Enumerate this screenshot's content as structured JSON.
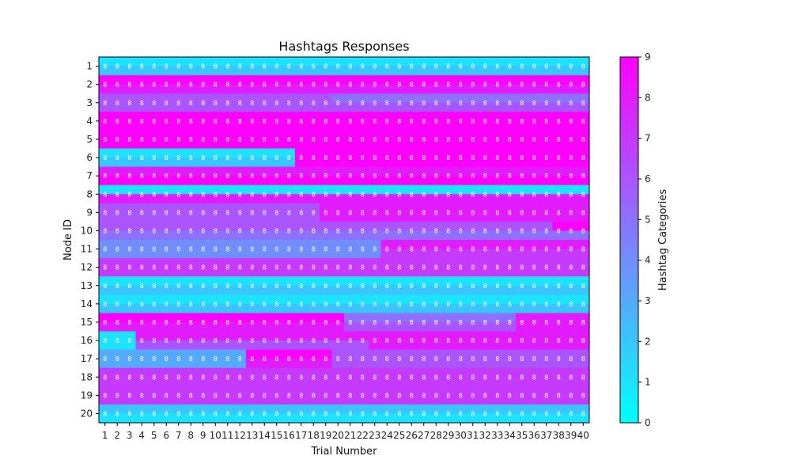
{
  "chart_data": {
    "type": "heatmap",
    "title": "Hashtags Responses",
    "xlabel": "Trial Number",
    "ylabel": "Node ID",
    "colorbar_label": "Hashtag Categories",
    "color_range": [
      0,
      9
    ],
    "colorbar_ticks": [
      "0",
      "1",
      "2",
      "3",
      "4",
      "5",
      "6",
      "7",
      "8",
      "9"
    ],
    "x_categories": [
      "1",
      "2",
      "3",
      "4",
      "5",
      "6",
      "7",
      "8",
      "9",
      "10",
      "11",
      "12",
      "13",
      "14",
      "15",
      "16",
      "17",
      "18",
      "19",
      "20",
      "21",
      "22",
      "23",
      "24",
      "25",
      "26",
      "27",
      "28",
      "29",
      "30",
      "31",
      "32",
      "33",
      "34",
      "35",
      "36",
      "37",
      "38",
      "39",
      "40"
    ],
    "y_categories": [
      "1",
      "2",
      "3",
      "4",
      "5",
      "6",
      "7",
      "8",
      "9",
      "10",
      "11",
      "12",
      "13",
      "14",
      "15",
      "16",
      "17",
      "18",
      "19",
      "20"
    ],
    "rows": [
      {
        "node": "1",
        "segments": [
          {
            "from": 1,
            "to": 40,
            "top": 1,
            "bottom": 2
          }
        ]
      },
      {
        "node": "2",
        "segments": [
          {
            "from": 1,
            "to": 40,
            "top": 9,
            "bottom": 8
          }
        ]
      },
      {
        "node": "3",
        "segments": [
          {
            "from": 1,
            "to": 19,
            "top": 6,
            "bottom": 6
          },
          {
            "from": 20,
            "to": 40,
            "top": 5,
            "bottom": 6
          }
        ]
      },
      {
        "node": "4",
        "segments": [
          {
            "from": 1,
            "to": 40,
            "top": 9,
            "bottom": 9
          }
        ]
      },
      {
        "node": "5",
        "segments": [
          {
            "from": 1,
            "to": 40,
            "top": 9,
            "bottom": 9
          }
        ]
      },
      {
        "node": "6",
        "segments": [
          {
            "from": 1,
            "to": 16,
            "top": 1,
            "bottom": 2
          },
          {
            "from": 17,
            "to": 40,
            "top": 9,
            "bottom": 9
          }
        ]
      },
      {
        "node": "7",
        "segments": [
          {
            "from": 1,
            "to": 40,
            "top": 8,
            "bottom": 9
          }
        ]
      },
      {
        "node": "8",
        "segments": [
          {
            "from": 1,
            "to": 40,
            "top": 1,
            "bottom": 8
          }
        ]
      },
      {
        "node": "9",
        "segments": [
          {
            "from": 1,
            "to": 18,
            "top": 6,
            "bottom": 6
          },
          {
            "from": 19,
            "to": 40,
            "top": 8,
            "bottom": 8
          }
        ]
      },
      {
        "node": "10",
        "segments": [
          {
            "from": 1,
            "to": 37,
            "top": 6,
            "bottom": 5
          },
          {
            "from": 38,
            "to": 40,
            "top": 9,
            "bottom": 5
          }
        ]
      },
      {
        "node": "11",
        "segments": [
          {
            "from": 1,
            "to": 23,
            "top": 4,
            "bottom": 4
          },
          {
            "from": 24,
            "to": 40,
            "top": 8,
            "bottom": 7
          }
        ]
      },
      {
        "node": "12",
        "segments": [
          {
            "from": 1,
            "to": 40,
            "top": 7,
            "bottom": 7
          }
        ]
      },
      {
        "node": "13",
        "segments": [
          {
            "from": 1,
            "to": 40,
            "top": 1,
            "bottom": 2
          }
        ]
      },
      {
        "node": "14",
        "segments": [
          {
            "from": 1,
            "to": 40,
            "top": 1,
            "bottom": 2
          }
        ]
      },
      {
        "node": "15",
        "segments": [
          {
            "from": 1,
            "to": 20,
            "top": 9,
            "bottom": 8
          },
          {
            "from": 21,
            "to": 34,
            "top": 5,
            "bottom": 6
          },
          {
            "from": 35,
            "to": 40,
            "top": 8,
            "bottom": 8
          }
        ]
      },
      {
        "node": "16",
        "segments": [
          {
            "from": 1,
            "to": 3,
            "top": 1,
            "bottom": 1
          },
          {
            "from": 4,
            "to": 22,
            "top": 8,
            "bottom": 6
          },
          {
            "from": 23,
            "to": 40,
            "top": 8,
            "bottom": 8
          }
        ]
      },
      {
        "node": "17",
        "segments": [
          {
            "from": 1,
            "to": 12,
            "top": 3,
            "bottom": 3
          },
          {
            "from": 13,
            "to": 19,
            "top": 9,
            "bottom": 8
          },
          {
            "from": 20,
            "to": 40,
            "top": 6,
            "bottom": 6
          }
        ]
      },
      {
        "node": "18",
        "segments": [
          {
            "from": 1,
            "to": 40,
            "top": 7,
            "bottom": 7
          }
        ]
      },
      {
        "node": "19",
        "segments": [
          {
            "from": 1,
            "to": 40,
            "top": 7,
            "bottom": 7
          }
        ]
      },
      {
        "node": "20",
        "segments": [
          {
            "from": 1,
            "to": 40,
            "top": 2,
            "bottom": 1
          }
        ]
      }
    ],
    "cell_label_text": "8"
  }
}
